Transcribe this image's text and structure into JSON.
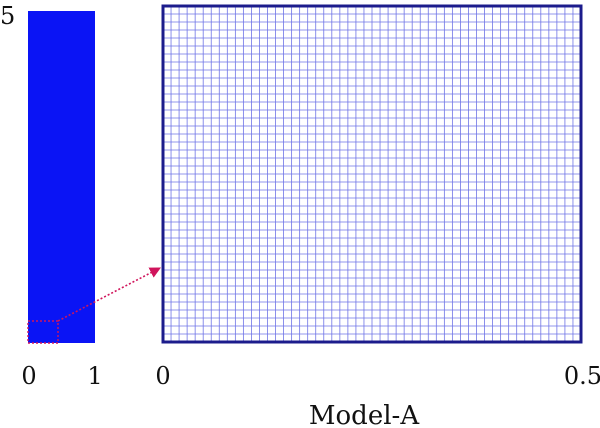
{
  "full_domain": {
    "y_top_label": "5",
    "x_left_label": "0",
    "x_right_label": "1"
  },
  "zoomed_mesh": {
    "x_left_label": "0",
    "x_right_label": "0.5"
  },
  "caption": "Model-A",
  "colors": {
    "domain_fill": "#0a14f5",
    "mesh_line": "#6f74e6",
    "mesh_border": "#1c1c8c",
    "zoom_indicator": "#d0155c",
    "label": "#111111"
  }
}
